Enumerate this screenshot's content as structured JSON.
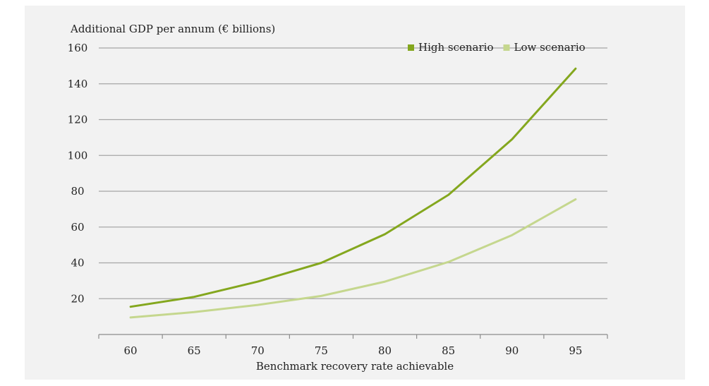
{
  "chart_data": {
    "type": "line",
    "title": "Additional GDP per annum (€ billions)",
    "xlabel": "Benchmark recovery rate achievable",
    "ylabel": "",
    "x": [
      60,
      65,
      70,
      75,
      80,
      85,
      90,
      95
    ],
    "ylim": [
      0,
      160
    ],
    "yticks": [
      20,
      40,
      60,
      80,
      100,
      120,
      140,
      160
    ],
    "grid": true,
    "legend_position": "top-right",
    "series": [
      {
        "name": "High scenario",
        "color": "#84a71e",
        "values": [
          15.5,
          21,
          29.5,
          40,
          56,
          78,
          109,
          148.5
        ]
      },
      {
        "name": "Low scenario",
        "color": "#c5d78e",
        "values": [
          9.5,
          12.5,
          16.5,
          21.5,
          29.5,
          40.5,
          55.5,
          75.5
        ]
      }
    ]
  }
}
